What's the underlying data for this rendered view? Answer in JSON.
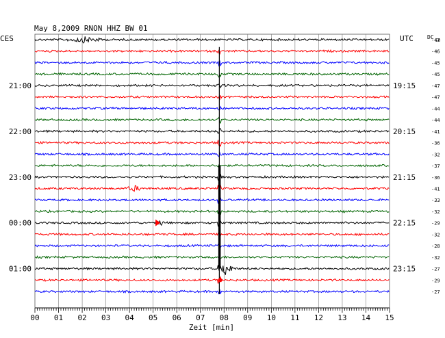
{
  "chart_data": {
    "type": "line",
    "title": "May 8,2009   RNON HHZ BW 01",
    "left_label": "CES",
    "right_label": "UTC",
    "dc_label": "DC",
    "dc_sub": "50",
    "xlabel": "Zeit [min]",
    "xlim": [
      0,
      15
    ],
    "x_ticks": [
      "00",
      "01",
      "02",
      "03",
      "04",
      "05",
      "06",
      "07",
      "08",
      "09",
      "10",
      "11",
      "12",
      "13",
      "14",
      "15"
    ],
    "grid": true,
    "left_times": [
      {
        "row": 4,
        "label": "21:00"
      },
      {
        "row": 8,
        "label": "22:00"
      },
      {
        "row": 12,
        "label": "23:00"
      },
      {
        "row": 16,
        "label": "00:00"
      },
      {
        "row": 20,
        "label": "01:00"
      }
    ],
    "right_times": [
      {
        "row": 4,
        "label": "19:15"
      },
      {
        "row": 8,
        "label": "20:15"
      },
      {
        "row": 12,
        "label": "21:15"
      },
      {
        "row": 16,
        "label": "22:15"
      },
      {
        "row": 20,
        "label": "23:15"
      }
    ],
    "dc_values": [
      "-47",
      "-46",
      "-45",
      "-45",
      "-47",
      "-47",
      "-44",
      "-44",
      "-41",
      "-36",
      "-32",
      "-37",
      "-36",
      "-41",
      "-33",
      "-32",
      "-29",
      "-32",
      "-28",
      "-32",
      "-27",
      "-29",
      "-27"
    ],
    "trace_colors": [
      "#000000",
      "#ff0000",
      "#0000ff",
      "#006400"
    ],
    "event_time_min": 7.8,
    "event_onset_row": 1,
    "events": [
      {
        "row": 0,
        "start_min": 1.2,
        "end_min": 3.0,
        "amplitude": "small"
      },
      {
        "row": 13,
        "start_min": 3.8,
        "end_min": 4.6,
        "amplitude": "small"
      },
      {
        "row": 16,
        "start_min": 5.1,
        "end_min": 5.5,
        "amplitude": "small"
      },
      {
        "row": 20,
        "start_min": 7.8,
        "end_min": 8.4,
        "amplitude": "large"
      }
    ]
  }
}
